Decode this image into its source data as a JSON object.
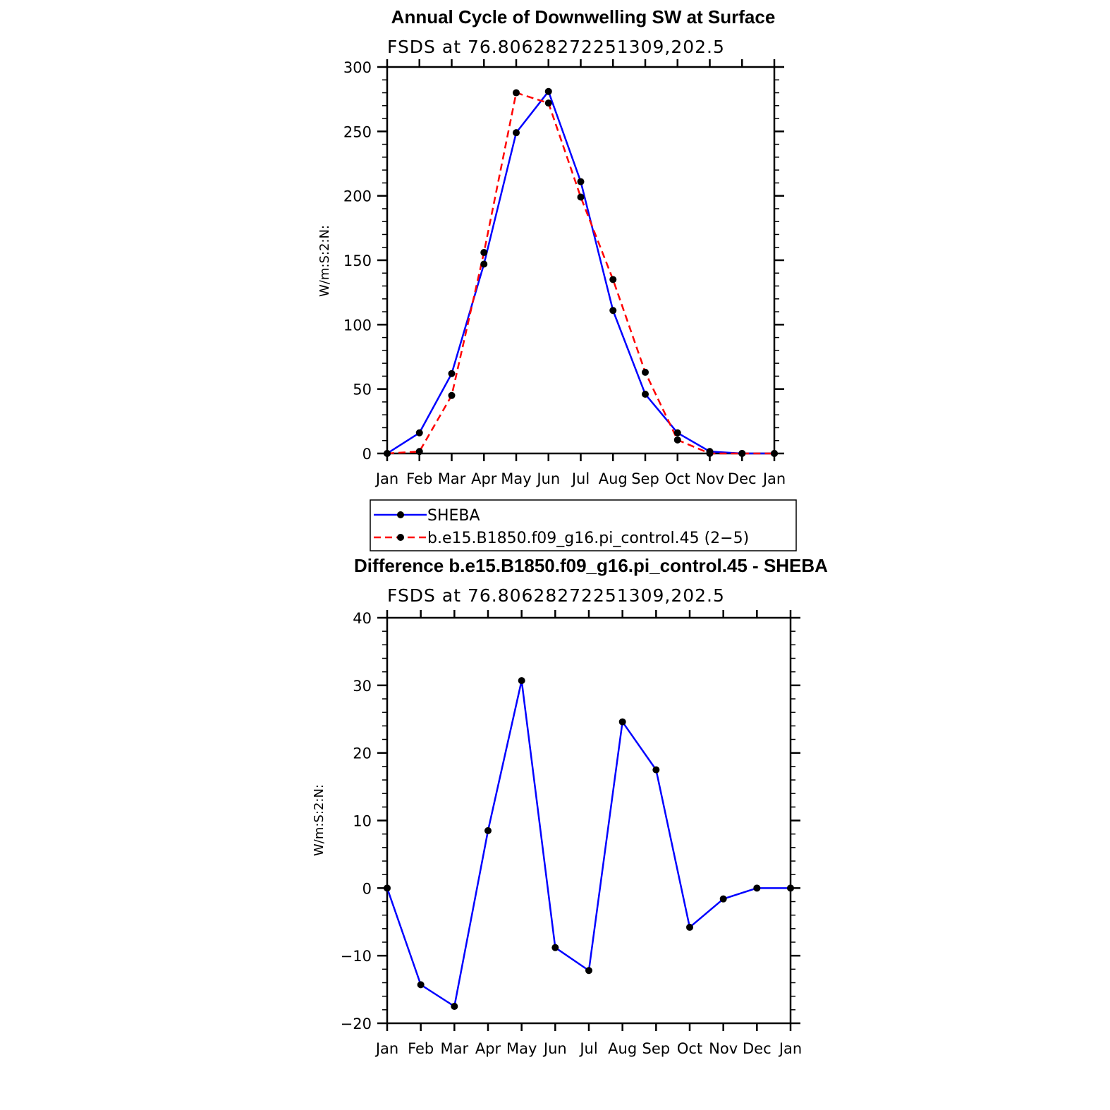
{
  "chart_data": [
    {
      "type": "line",
      "title": "Annual Cycle of Downwelling SW at Surface",
      "subtitle": "FSDS at 76.80628272251309,202.5",
      "ylabel": "W/m:S:2:N:",
      "xlabel": "",
      "categories": [
        "Jan",
        "Feb",
        "Mar",
        "Apr",
        "May",
        "Jun",
        "Jul",
        "Aug",
        "Sep",
        "Oct",
        "Nov",
        "Dec",
        "Jan"
      ],
      "ylim": [
        0,
        300
      ],
      "yticks": [
        0,
        50,
        100,
        150,
        200,
        250,
        300
      ],
      "ytick_labels": [
        "0",
        "50",
        "100",
        "150",
        "200",
        "250",
        "300"
      ],
      "grid": false,
      "legend_position": "bottom",
      "series": [
        {
          "name": "SHEBA",
          "color": "#0000ff",
          "style": "solid",
          "values": [
            0,
            16,
            62,
            147,
            249,
            281,
            211,
            111,
            46,
            16,
            1.5,
            0,
            0
          ]
        },
        {
          "name": "b.e15.B1850.f09_g16.pi_control.45 (2−5)",
          "color": "#ff0000",
          "style": "dashed",
          "values": [
            0,
            1.5,
            45,
            156,
            280,
            272,
            199,
            135,
            63,
            10.5,
            0,
            0,
            0
          ]
        }
      ]
    },
    {
      "type": "line",
      "title": "Difference b.e15.B1850.f09_g16.pi_control.45 - SHEBA",
      "subtitle": "FSDS at 76.80628272251309,202.5",
      "ylabel": "W/m:S:2:N:",
      "xlabel": "",
      "categories": [
        "Jan",
        "Feb",
        "Mar",
        "Apr",
        "May",
        "Jun",
        "Jul",
        "Aug",
        "Sep",
        "Oct",
        "Nov",
        "Dec",
        "Jan"
      ],
      "ylim": [
        -20,
        40
      ],
      "yticks": [
        -20,
        -10,
        0,
        10,
        20,
        30,
        40
      ],
      "ytick_labels": [
        "−20",
        "−10",
        "0",
        "10",
        "20",
        "30",
        "40"
      ],
      "grid": false,
      "series": [
        {
          "color": "#0000ff",
          "style": "solid",
          "values": [
            0,
            -14.3,
            -17.5,
            8.5,
            30.7,
            -8.8,
            -12.2,
            24.6,
            17.5,
            -5.8,
            -1.6,
            0,
            0
          ]
        }
      ]
    }
  ]
}
